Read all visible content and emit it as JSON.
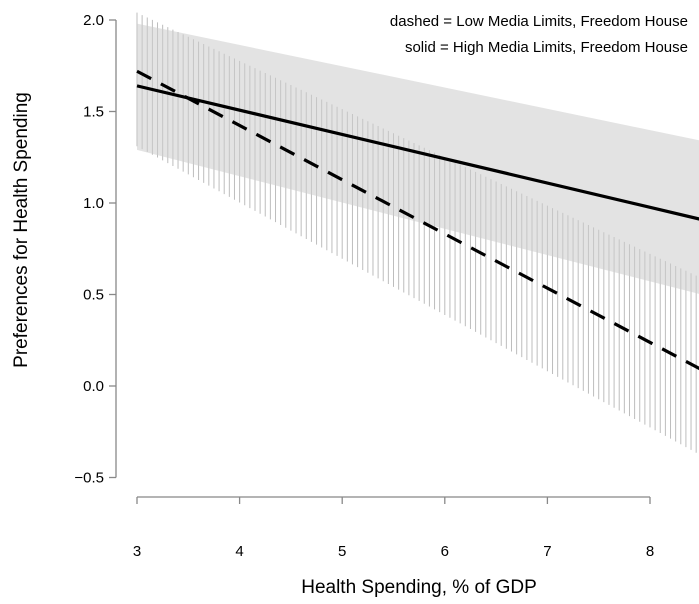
{
  "chart_data": {
    "type": "line",
    "title": "",
    "xlabel": "Health Spending, % of GDP",
    "ylabel": "Preferences for Health Spending",
    "xlim": [
      3,
      8.5
    ],
    "ylim": [
      -0.55,
      2.05
    ],
    "x_ticks": [
      "3",
      "4",
      "5",
      "6",
      "7",
      "8"
    ],
    "y_ticks": [
      "2.0",
      "1.5",
      "1.0",
      "0.5",
      "0.0",
      "−0.5"
    ],
    "legend": {
      "position": "top-right",
      "entries": [
        "dashed = Low Media Limits, Freedom House",
        "solid = High Media Limits, Freedom House"
      ]
    },
    "series": [
      {
        "style": "dashed",
        "x": [
          3,
          8.5
        ],
        "y": [
          1.72,
          0.09
        ],
        "ci_lower": [
          1.31,
          -0.38
        ],
        "ci_upper": [
          2.04,
          0.59
        ],
        "ci_render": "vertical-hatch"
      },
      {
        "style": "solid",
        "x": [
          3,
          8.5
        ],
        "y": [
          1.64,
          0.91
        ],
        "ci_lower": [
          1.29,
          0.5
        ],
        "ci_upper": [
          1.98,
          1.34
        ],
        "ci_render": "grey-band"
      }
    ],
    "grid": false,
    "colors": {
      "lines": "#000000",
      "hatch": "#bdbdbd",
      "band": "#cccccc"
    }
  }
}
